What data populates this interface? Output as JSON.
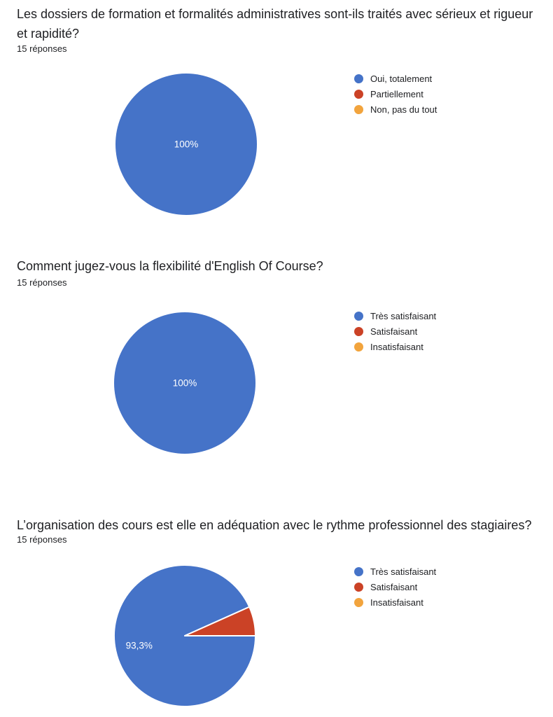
{
  "page": {
    "background": "#ffffff"
  },
  "chart_data": [
    {
      "type": "pie",
      "title": "Les dossiers de formation et formalités administratives sont-ils traités avec sérieux et rigueur et rapidité?",
      "responses_label": "15 réponses",
      "legend_position": "right",
      "labels": [
        "Oui, totalement",
        "Partiellement",
        "Non, pas du tout"
      ],
      "values_percent": [
        100,
        0,
        0
      ],
      "slice_labels": [
        "100%",
        "",
        ""
      ],
      "colors": [
        "#4573c8",
        "#cb4226",
        "#f2a43d"
      ],
      "slice_label_color": "#ffffff"
    },
    {
      "type": "pie",
      "title": "Comment jugez-vous la flexibilité d'English Of Course?",
      "responses_label": "15 réponses",
      "legend_position": "right",
      "labels": [
        "Très satisfaisant",
        "Satisfaisant",
        "Insatisfaisant"
      ],
      "values_percent": [
        100,
        0,
        0
      ],
      "slice_labels": [
        "100%",
        "",
        ""
      ],
      "colors": [
        "#4573c8",
        "#cb4226",
        "#f2a43d"
      ],
      "slice_label_color": "#ffffff"
    },
    {
      "type": "pie",
      "title": "L’organisation des cours est elle en adéquation avec le rythme professionnel des stagiaires?",
      "responses_label": "15 réponses",
      "legend_position": "right",
      "labels": [
        "Très satisfaisant",
        "Satisfaisant",
        "Insatisfaisant"
      ],
      "values_percent": [
        93.3,
        6.7,
        0
      ],
      "slice_labels": [
        "93,3%",
        "",
        ""
      ],
      "colors": [
        "#4573c8",
        "#cb4226",
        "#f2a43d"
      ],
      "slice_label_color": "#ffffff"
    }
  ]
}
